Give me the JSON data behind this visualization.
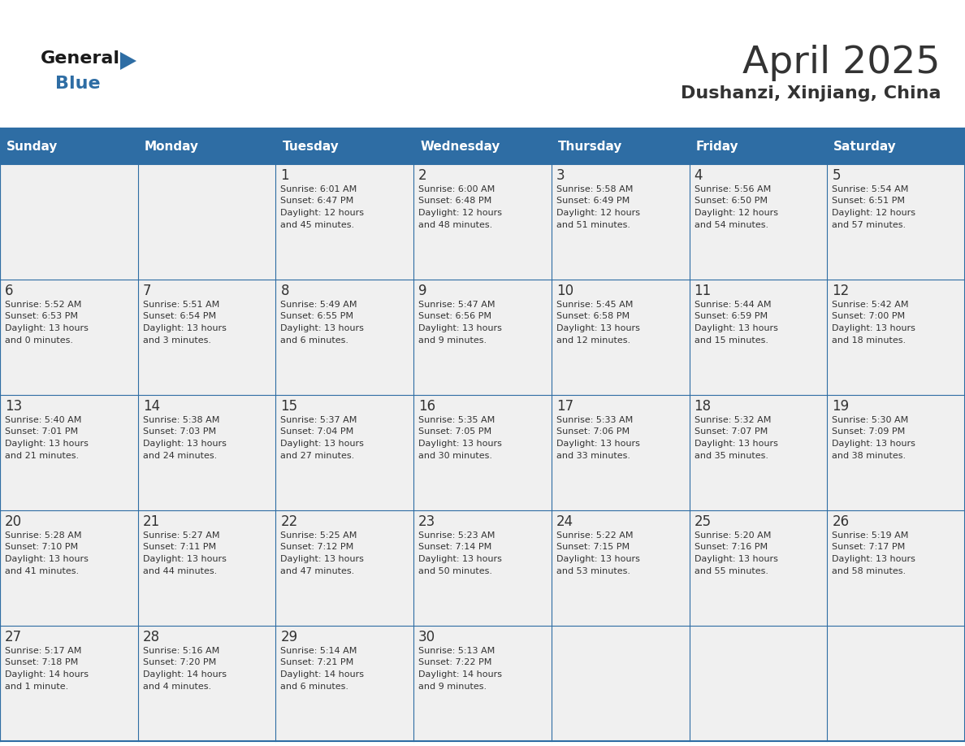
{
  "title": "April 2025",
  "subtitle": "Dushanzi, Xinjiang, China",
  "days_of_week": [
    "Sunday",
    "Monday",
    "Tuesday",
    "Wednesday",
    "Thursday",
    "Friday",
    "Saturday"
  ],
  "header_bg": "#2E6DA4",
  "header_fg": "#FFFFFF",
  "cell_bg": "#F0F0F0",
  "border_color": "#2E6DA4",
  "text_color": "#333333",
  "logo_general_color": "#1a1a1a",
  "logo_blue_color": "#2E6DA4",
  "title_fontsize": 34,
  "subtitle_fontsize": 16,
  "dow_fontsize": 11,
  "day_num_fontsize": 12,
  "info_fontsize": 8,
  "calendar_data": [
    [
      {
        "day": null,
        "lines": null
      },
      {
        "day": null,
        "lines": null
      },
      {
        "day": "1",
        "lines": [
          "Sunrise: 6:01 AM",
          "Sunset: 6:47 PM",
          "Daylight: 12 hours",
          "and 45 minutes."
        ]
      },
      {
        "day": "2",
        "lines": [
          "Sunrise: 6:00 AM",
          "Sunset: 6:48 PM",
          "Daylight: 12 hours",
          "and 48 minutes."
        ]
      },
      {
        "day": "3",
        "lines": [
          "Sunrise: 5:58 AM",
          "Sunset: 6:49 PM",
          "Daylight: 12 hours",
          "and 51 minutes."
        ]
      },
      {
        "day": "4",
        "lines": [
          "Sunrise: 5:56 AM",
          "Sunset: 6:50 PM",
          "Daylight: 12 hours",
          "and 54 minutes."
        ]
      },
      {
        "day": "5",
        "lines": [
          "Sunrise: 5:54 AM",
          "Sunset: 6:51 PM",
          "Daylight: 12 hours",
          "and 57 minutes."
        ]
      }
    ],
    [
      {
        "day": "6",
        "lines": [
          "Sunrise: 5:52 AM",
          "Sunset: 6:53 PM",
          "Daylight: 13 hours",
          "and 0 minutes."
        ]
      },
      {
        "day": "7",
        "lines": [
          "Sunrise: 5:51 AM",
          "Sunset: 6:54 PM",
          "Daylight: 13 hours",
          "and 3 minutes."
        ]
      },
      {
        "day": "8",
        "lines": [
          "Sunrise: 5:49 AM",
          "Sunset: 6:55 PM",
          "Daylight: 13 hours",
          "and 6 minutes."
        ]
      },
      {
        "day": "9",
        "lines": [
          "Sunrise: 5:47 AM",
          "Sunset: 6:56 PM",
          "Daylight: 13 hours",
          "and 9 minutes."
        ]
      },
      {
        "day": "10",
        "lines": [
          "Sunrise: 5:45 AM",
          "Sunset: 6:58 PM",
          "Daylight: 13 hours",
          "and 12 minutes."
        ]
      },
      {
        "day": "11",
        "lines": [
          "Sunrise: 5:44 AM",
          "Sunset: 6:59 PM",
          "Daylight: 13 hours",
          "and 15 minutes."
        ]
      },
      {
        "day": "12",
        "lines": [
          "Sunrise: 5:42 AM",
          "Sunset: 7:00 PM",
          "Daylight: 13 hours",
          "and 18 minutes."
        ]
      }
    ],
    [
      {
        "day": "13",
        "lines": [
          "Sunrise: 5:40 AM",
          "Sunset: 7:01 PM",
          "Daylight: 13 hours",
          "and 21 minutes."
        ]
      },
      {
        "day": "14",
        "lines": [
          "Sunrise: 5:38 AM",
          "Sunset: 7:03 PM",
          "Daylight: 13 hours",
          "and 24 minutes."
        ]
      },
      {
        "day": "15",
        "lines": [
          "Sunrise: 5:37 AM",
          "Sunset: 7:04 PM",
          "Daylight: 13 hours",
          "and 27 minutes."
        ]
      },
      {
        "day": "16",
        "lines": [
          "Sunrise: 5:35 AM",
          "Sunset: 7:05 PM",
          "Daylight: 13 hours",
          "and 30 minutes."
        ]
      },
      {
        "day": "17",
        "lines": [
          "Sunrise: 5:33 AM",
          "Sunset: 7:06 PM",
          "Daylight: 13 hours",
          "and 33 minutes."
        ]
      },
      {
        "day": "18",
        "lines": [
          "Sunrise: 5:32 AM",
          "Sunset: 7:07 PM",
          "Daylight: 13 hours",
          "and 35 minutes."
        ]
      },
      {
        "day": "19",
        "lines": [
          "Sunrise: 5:30 AM",
          "Sunset: 7:09 PM",
          "Daylight: 13 hours",
          "and 38 minutes."
        ]
      }
    ],
    [
      {
        "day": "20",
        "lines": [
          "Sunrise: 5:28 AM",
          "Sunset: 7:10 PM",
          "Daylight: 13 hours",
          "and 41 minutes."
        ]
      },
      {
        "day": "21",
        "lines": [
          "Sunrise: 5:27 AM",
          "Sunset: 7:11 PM",
          "Daylight: 13 hours",
          "and 44 minutes."
        ]
      },
      {
        "day": "22",
        "lines": [
          "Sunrise: 5:25 AM",
          "Sunset: 7:12 PM",
          "Daylight: 13 hours",
          "and 47 minutes."
        ]
      },
      {
        "day": "23",
        "lines": [
          "Sunrise: 5:23 AM",
          "Sunset: 7:14 PM",
          "Daylight: 13 hours",
          "and 50 minutes."
        ]
      },
      {
        "day": "24",
        "lines": [
          "Sunrise: 5:22 AM",
          "Sunset: 7:15 PM",
          "Daylight: 13 hours",
          "and 53 minutes."
        ]
      },
      {
        "day": "25",
        "lines": [
          "Sunrise: 5:20 AM",
          "Sunset: 7:16 PM",
          "Daylight: 13 hours",
          "and 55 minutes."
        ]
      },
      {
        "day": "26",
        "lines": [
          "Sunrise: 5:19 AM",
          "Sunset: 7:17 PM",
          "Daylight: 13 hours",
          "and 58 minutes."
        ]
      }
    ],
    [
      {
        "day": "27",
        "lines": [
          "Sunrise: 5:17 AM",
          "Sunset: 7:18 PM",
          "Daylight: 14 hours",
          "and 1 minute."
        ]
      },
      {
        "day": "28",
        "lines": [
          "Sunrise: 5:16 AM",
          "Sunset: 7:20 PM",
          "Daylight: 14 hours",
          "and 4 minutes."
        ]
      },
      {
        "day": "29",
        "lines": [
          "Sunrise: 5:14 AM",
          "Sunset: 7:21 PM",
          "Daylight: 14 hours",
          "and 6 minutes."
        ]
      },
      {
        "day": "30",
        "lines": [
          "Sunrise: 5:13 AM",
          "Sunset: 7:22 PM",
          "Daylight: 14 hours",
          "and 9 minutes."
        ]
      },
      {
        "day": null,
        "lines": null
      },
      {
        "day": null,
        "lines": null
      },
      {
        "day": null,
        "lines": null
      }
    ]
  ]
}
